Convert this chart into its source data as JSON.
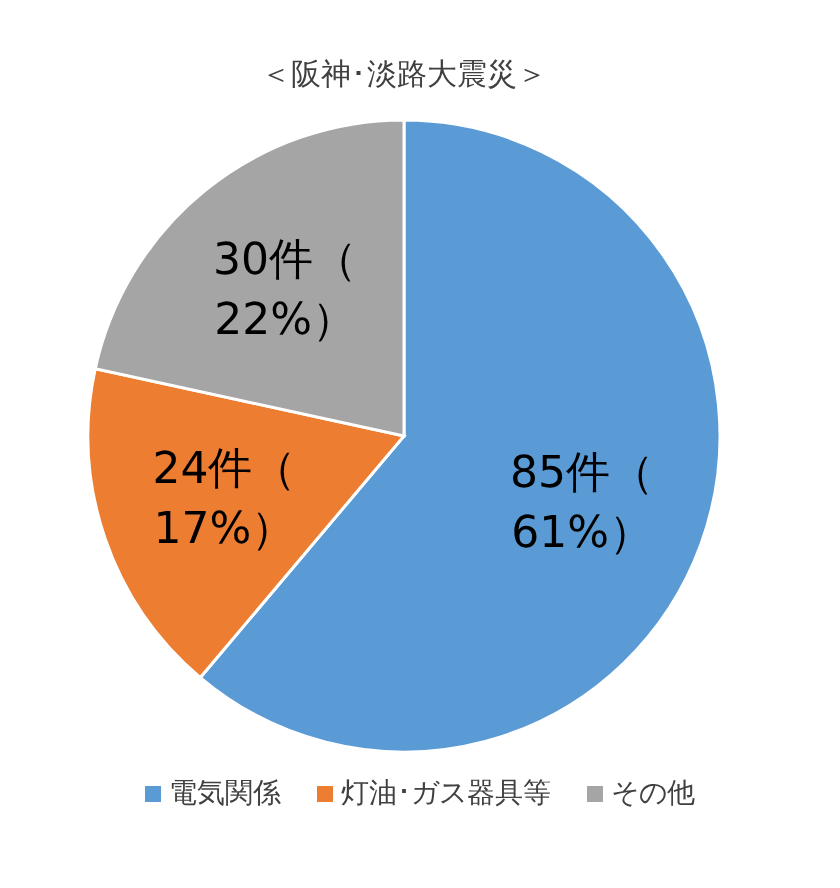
{
  "chart_data": {
    "type": "pie",
    "title": "＜阪神･淡路大震災＞",
    "categories": [
      "電気関係",
      "灯油･ガス器具等",
      "その他"
    ],
    "values": [
      85,
      24,
      30
    ],
    "colors": [
      "#5b9bd5",
      "#ed7d31",
      "#a5a5a5"
    ],
    "value_labels": [
      "85件（61%）",
      "24件（17%）",
      "30件（22%）"
    ],
    "legend": "bottom"
  }
}
